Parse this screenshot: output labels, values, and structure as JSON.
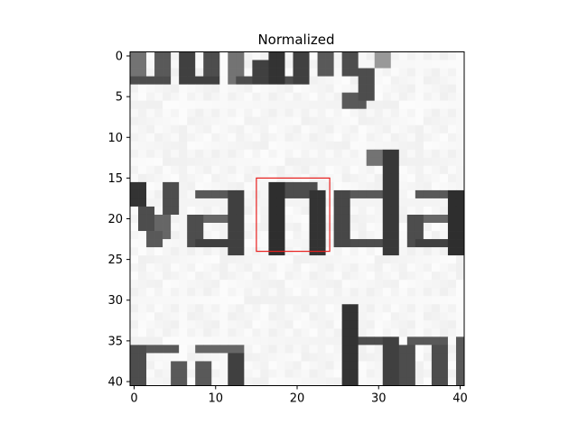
{
  "chart_data": {
    "type": "heatmap",
    "title": "Normalized",
    "xlabel": "",
    "ylabel": "",
    "xlim": [
      -0.5,
      40.5
    ],
    "ylim": [
      40.5,
      -0.5
    ],
    "x_ticks": [
      0,
      10,
      20,
      30,
      40
    ],
    "y_ticks": [
      0,
      5,
      10,
      15,
      20,
      25,
      30,
      35,
      40
    ],
    "colormap": "gray",
    "grid": false,
    "image_description": "grayscale handwritten text patch; fragments of letters on rows 0-6, the word 'vanda' across rows 15-24, and letters on rows 33-40",
    "annotations": [
      {
        "type": "rectangle",
        "x0": 15,
        "y0": 15,
        "x1": 24,
        "y1": 24,
        "color": "#e8201e"
      }
    ]
  }
}
